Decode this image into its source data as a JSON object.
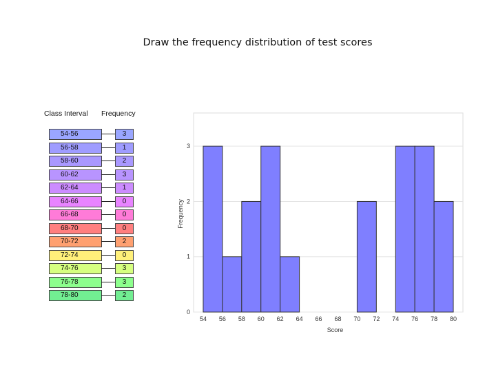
{
  "title": "Draw the frequency distribution of test scores",
  "table": {
    "header_interval": "Class Interval",
    "header_frequency": "Frequency",
    "rows": [
      {
        "interval": "54-56",
        "frequency": "3",
        "color": "#9aa6ff"
      },
      {
        "interval": "56-58",
        "frequency": "1",
        "color": "#9f9cff"
      },
      {
        "interval": "58-60",
        "frequency": "2",
        "color": "#a998ff"
      },
      {
        "interval": "60-62",
        "frequency": "3",
        "color": "#b894ff"
      },
      {
        "interval": "62-64",
        "frequency": "1",
        "color": "#cc8cff"
      },
      {
        "interval": "64-66",
        "frequency": "0",
        "color": "#e884ff"
      },
      {
        "interval": "66-68",
        "frequency": "0",
        "color": "#ff7bd8"
      },
      {
        "interval": "68-70",
        "frequency": "0",
        "color": "#ff7f7f"
      },
      {
        "interval": "70-72",
        "frequency": "2",
        "color": "#ffa070"
      },
      {
        "interval": "72-74",
        "frequency": "0",
        "color": "#fff07a"
      },
      {
        "interval": "74-76",
        "frequency": "3",
        "color": "#d6ff80"
      },
      {
        "interval": "76-78",
        "frequency": "3",
        "color": "#8dff8d"
      },
      {
        "interval": "78-80",
        "frequency": "2",
        "color": "#72ee92"
      }
    ]
  },
  "chart_data": {
    "type": "bar",
    "categories": [
      "54-56",
      "56-58",
      "58-60",
      "60-62",
      "62-64",
      "64-66",
      "66-68",
      "68-70",
      "70-72",
      "72-74",
      "74-76",
      "76-78",
      "78-80"
    ],
    "bin_edges": [
      54,
      56,
      58,
      60,
      62,
      64,
      66,
      68,
      70,
      72,
      74,
      76,
      78,
      80
    ],
    "values": [
      3,
      1,
      2,
      3,
      1,
      0,
      0,
      0,
      2,
      0,
      3,
      3,
      2
    ],
    "xlabel": "Score",
    "ylabel": "Frequency",
    "xticks": [
      54,
      56,
      58,
      60,
      62,
      64,
      66,
      68,
      70,
      72,
      74,
      76,
      78,
      80
    ],
    "yticks": [
      0,
      1,
      2,
      3
    ],
    "xlim": [
      53,
      81
    ],
    "ylim": [
      0,
      3.6
    ],
    "grid": true,
    "bar_color": "#7f7fff",
    "bar_edge_color": "#333333"
  }
}
